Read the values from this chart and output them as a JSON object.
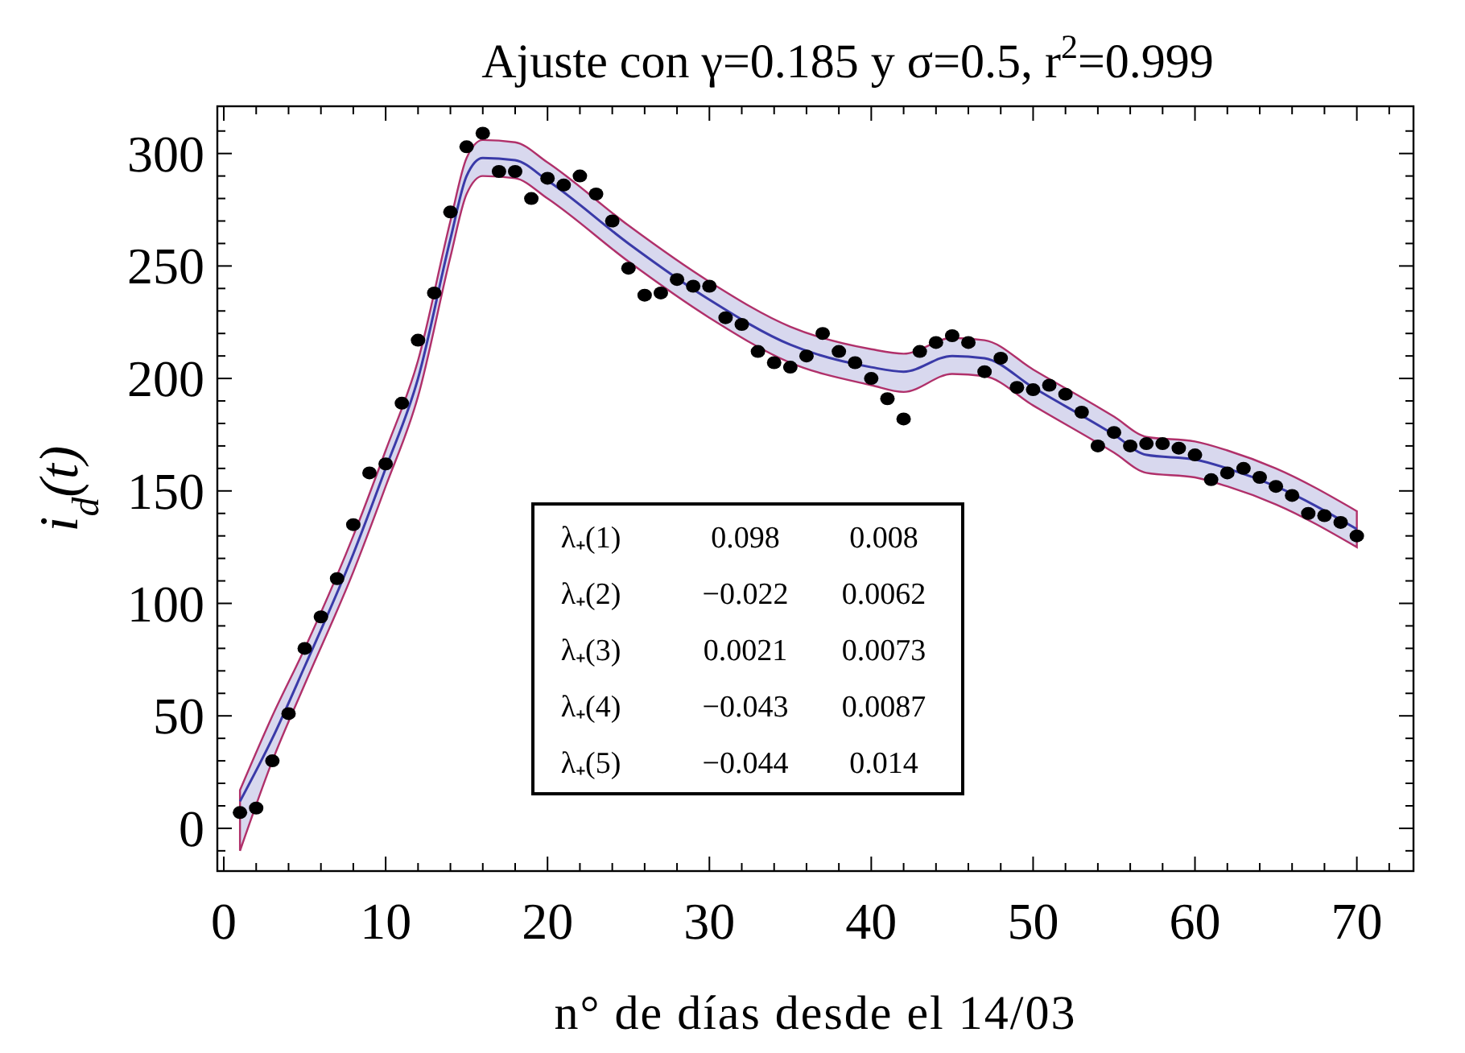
{
  "chart_data": {
    "type": "scatter",
    "title": "Ajuste con γ=0.185 y σ=0.5, r$^{2}$=0.999",
    "xlabel": "n° de días desde el 14/03",
    "ylabel": "i$_{d}$(t)",
    "xlim": [
      -0.4,
      73.5
    ],
    "ylim": [
      -19,
      321
    ],
    "xticks": [
      0,
      {
        "value": 2,
        "label": null
      },
      {
        "value": 4,
        "label": null
      },
      {
        "value": 6,
        "label": null
      },
      {
        "value": 8,
        "label": null
      },
      10,
      {
        "value": 12,
        "label": null
      },
      {
        "value": 14,
        "label": null
      },
      {
        "value": 16,
        "label": null
      },
      {
        "value": 18,
        "label": null
      },
      20,
      {
        "value": 22,
        "label": null
      },
      {
        "value": 24,
        "label": null
      },
      {
        "value": 26,
        "label": null
      },
      {
        "value": 28,
        "label": null
      },
      30,
      {
        "value": 32,
        "label": null
      },
      {
        "value": 34,
        "label": null
      },
      {
        "value": 36,
        "label": null
      },
      {
        "value": 38,
        "label": null
      },
      40,
      {
        "value": 42,
        "label": null
      },
      {
        "value": 44,
        "label": null
      },
      {
        "value": 46,
        "label": null
      },
      {
        "value": 48,
        "label": null
      },
      50,
      {
        "value": 52,
        "label": null
      },
      {
        "value": 54,
        "label": null
      },
      {
        "value": 56,
        "label": null
      },
      {
        "value": 58,
        "label": null
      },
      60,
      {
        "value": 62,
        "label": null
      },
      {
        "value": 64,
        "label": null
      },
      {
        "value": 66,
        "label": null
      },
      {
        "value": 68,
        "label": null
      },
      70,
      {
        "value": 72,
        "label": null
      }
    ],
    "yticks": [
      {
        "value": -10,
        "label": null
      },
      0,
      {
        "value": 10,
        "label": null
      },
      {
        "value": 20,
        "label": null
      },
      {
        "value": 30,
        "label": null
      },
      {
        "value": 40,
        "label": null
      },
      50,
      {
        "value": 60,
        "label": null
      },
      {
        "value": 70,
        "label": null
      },
      {
        "value": 80,
        "label": null
      },
      {
        "value": 90,
        "label": null
      },
      100,
      {
        "value": 110,
        "label": null
      },
      {
        "value": 120,
        "label": null
      },
      {
        "value": 130,
        "label": null
      },
      {
        "value": 140,
        "label": null
      },
      150,
      {
        "value": 160,
        "label": null
      },
      {
        "value": 170,
        "label": null
      },
      {
        "value": 180,
        "label": null
      },
      {
        "value": 190,
        "label": null
      },
      200,
      {
        "value": 210,
        "label": null
      },
      {
        "value": 220,
        "label": null
      },
      {
        "value": 230,
        "label": null
      },
      {
        "value": 240,
        "label": null
      },
      250,
      {
        "value": 260,
        "label": null
      },
      {
        "value": 270,
        "label": null
      },
      {
        "value": 280,
        "label": null
      },
      {
        "value": 290,
        "label": null
      },
      300,
      {
        "value": 310,
        "label": null
      }
    ],
    "grid": false,
    "series": [
      {
        "type": "line",
        "color": "#3a3aa8",
        "line_style": "solid",
        "marker": "none",
        "x": [
          1,
          3,
          5,
          8,
          10,
          12,
          14,
          15,
          16,
          18,
          20,
          25,
          30,
          35,
          40,
          42,
          45,
          47,
          50,
          55,
          57,
          60,
          62,
          65,
          70
        ],
        "values": [
          12,
          40,
          72,
          122,
          160,
          200,
          262,
          290,
          298,
          297,
          288,
          260,
          235,
          215,
          205,
          203,
          210,
          209,
          196,
          175,
          166,
          164,
          160,
          152,
          133
        ],
        "lower": [
          -10,
          30,
          64,
          114,
          152,
          192,
          254,
          282,
          290,
          289,
          280,
          252,
          227,
          207,
          197,
          194,
          202,
          201,
          188,
          167,
          158,
          156,
          152,
          144,
          125
        ],
        "upper": [
          17,
          50,
          80,
          130,
          168,
          208,
          270,
          298,
          306,
          305,
          296,
          268,
          243,
          223,
          213,
          211,
          218,
          217,
          204,
          183,
          174,
          172,
          168,
          160,
          141
        ]
      },
      {
        "type": "scatter",
        "color": "#000000",
        "marker": "circle",
        "x": [
          1,
          2,
          3,
          4,
          5,
          6,
          7,
          8,
          9,
          10,
          11,
          12,
          13,
          14,
          15,
          16,
          17,
          18,
          19,
          20,
          21,
          22,
          23,
          24,
          25,
          26,
          27,
          28,
          29,
          30,
          31,
          32,
          33,
          34,
          35,
          36,
          37,
          38,
          39,
          40,
          41,
          42,
          43,
          44,
          45,
          46,
          47,
          48,
          49,
          50,
          51,
          52,
          53,
          54,
          55,
          56,
          57,
          58,
          59,
          60,
          61,
          62,
          63,
          64,
          65,
          66,
          67,
          68,
          69,
          70
        ],
        "values": [
          7,
          9,
          30,
          51,
          80,
          94,
          111,
          135,
          158,
          162,
          189,
          217,
          238,
          274,
          303,
          309,
          292,
          292,
          280,
          289,
          286,
          290,
          282,
          270,
          249,
          237,
          238,
          244,
          241,
          241,
          227,
          224,
          212,
          207,
          205,
          210,
          220,
          212,
          207,
          200,
          191,
          182,
          212,
          216,
          219,
          216,
          203,
          209,
          196,
          195,
          197,
          193,
          185,
          170,
          176,
          170,
          171,
          171,
          169,
          166,
          155,
          158,
          160,
          156,
          152,
          148,
          140,
          139,
          136,
          130
        ]
      }
    ],
    "annotations": [
      "λ₊(1) 0.098 0.008",
      "λ₊(2) −0.022 0.0062",
      "λ₊(3) 0.0021 0.0073",
      "λ₊(4) −0.043 0.0087",
      "λ₊(5) −0.044 0.014"
    ]
  }
}
